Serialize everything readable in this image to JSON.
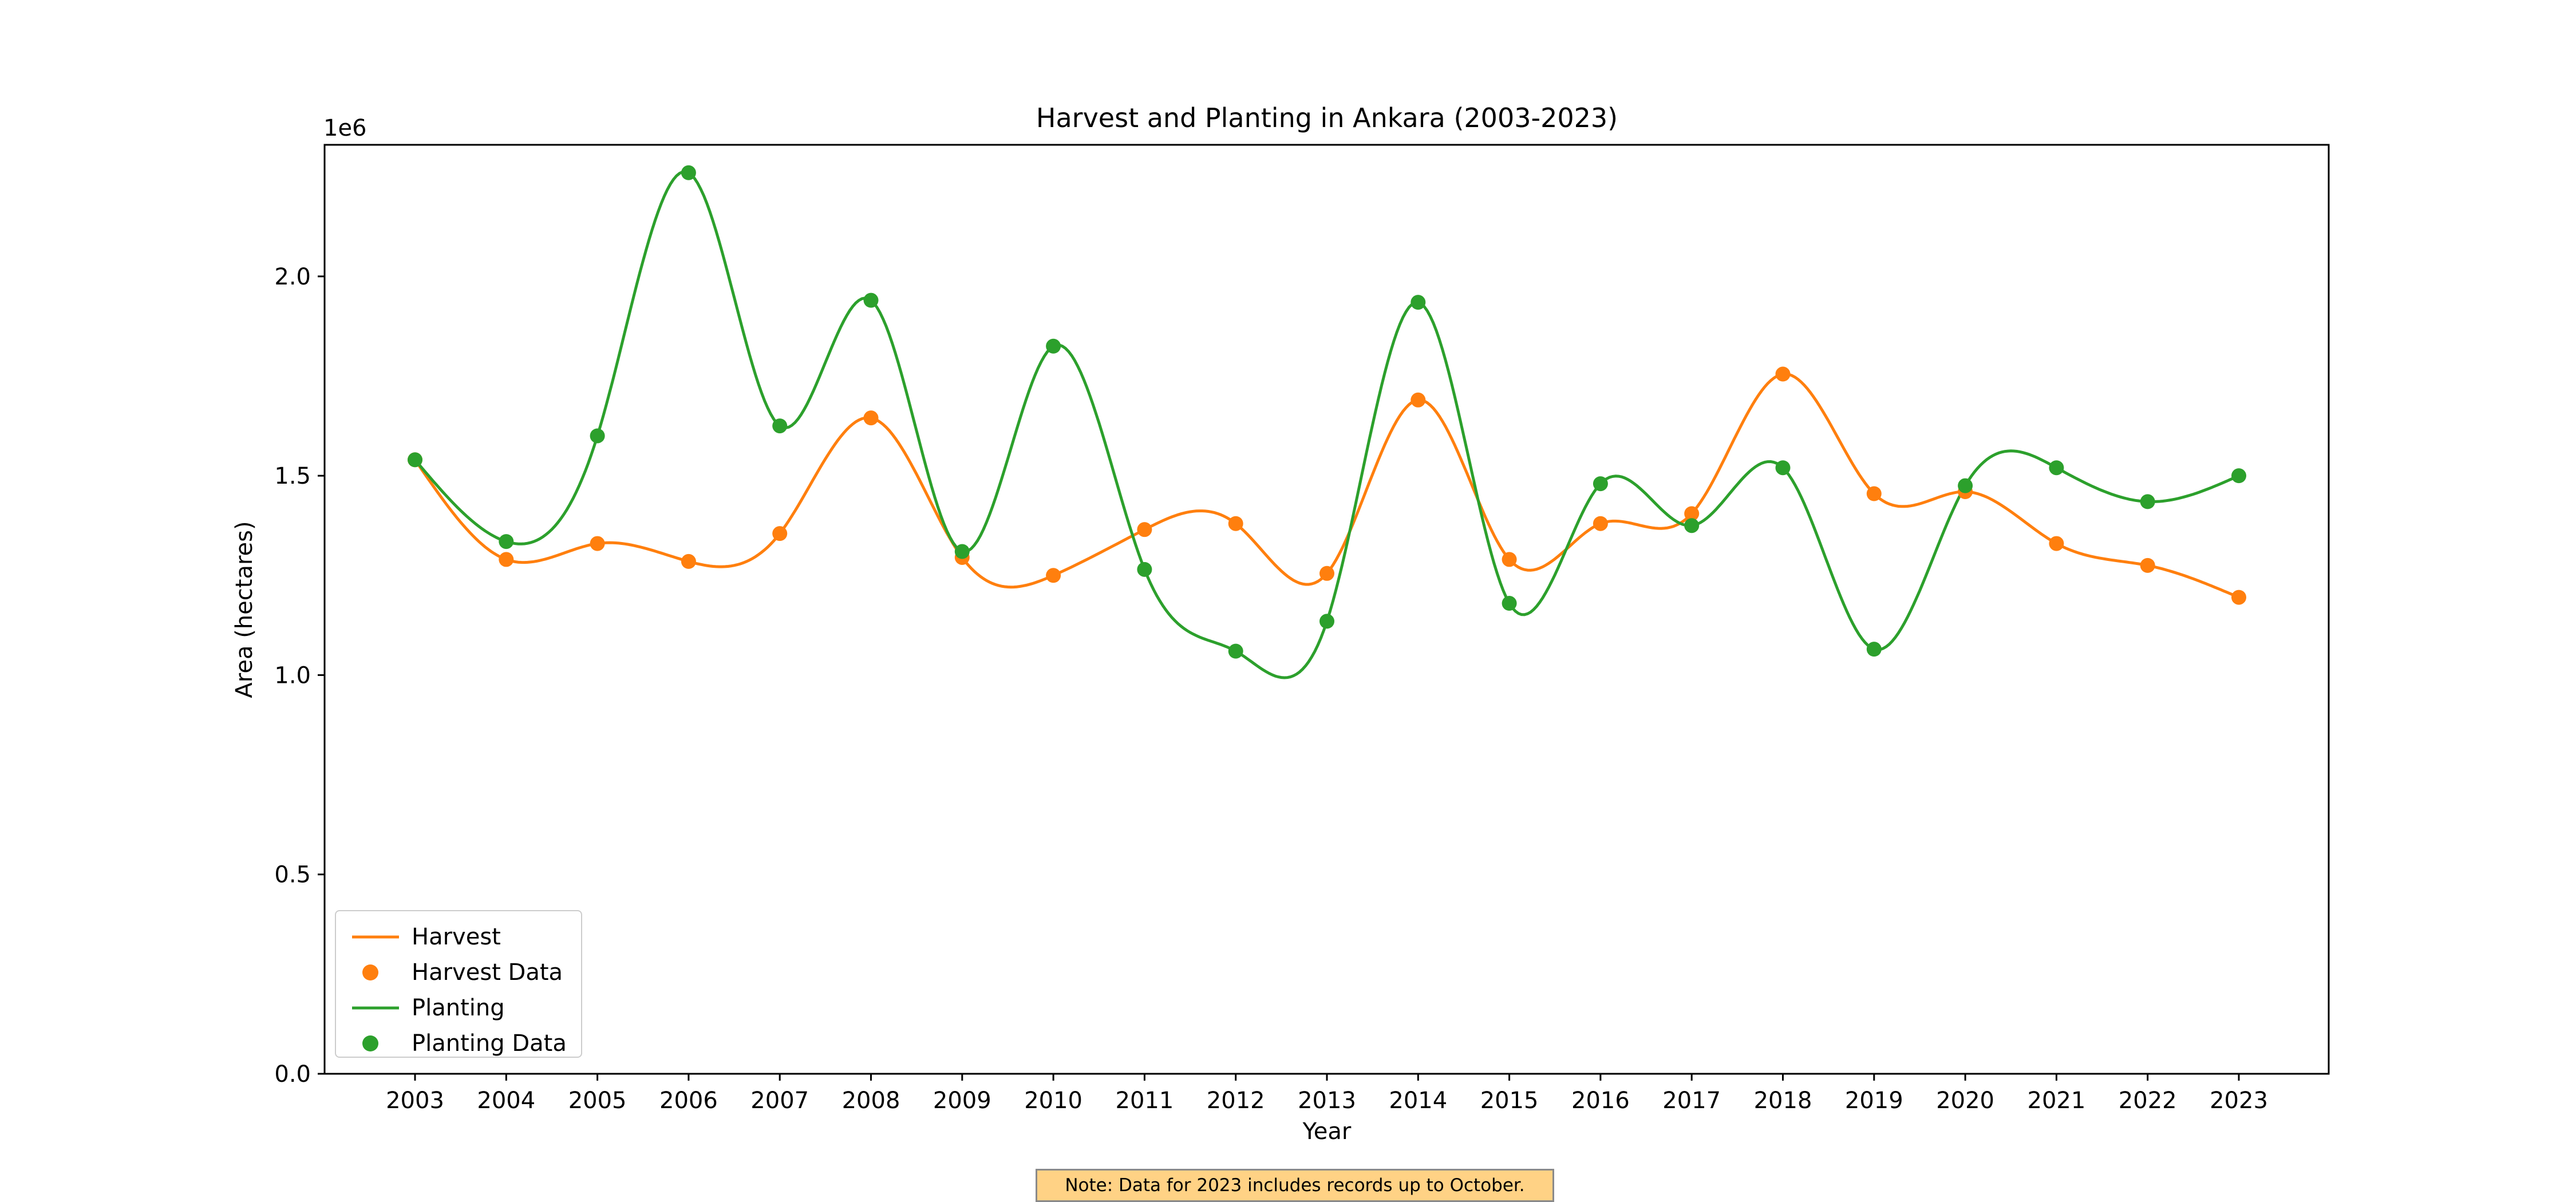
{
  "chart_data": {
    "type": "line",
    "title": "Harvest and Planting in Ankara (2003-2023)",
    "xlabel": "Year",
    "ylabel": "Area (hectares)",
    "y_offset_text": "1e6",
    "ylim": [
      0,
      2330000
    ],
    "yticks": [
      0,
      500000,
      1000000,
      1500000,
      2000000
    ],
    "ytick_labels": [
      "0.0",
      "0.5",
      "1.0",
      "1.5",
      "2.0"
    ],
    "x": [
      2003,
      2004,
      2005,
      2006,
      2007,
      2008,
      2009,
      2010,
      2011,
      2012,
      2013,
      2014,
      2015,
      2016,
      2017,
      2018,
      2019,
      2020,
      2021,
      2022,
      2023
    ],
    "x_labels": [
      "2003",
      "2004",
      "2005",
      "2006",
      "2007",
      "2008",
      "2009",
      "2010",
      "2011",
      "2012",
      "2013",
      "2014",
      "2015",
      "2016",
      "2017",
      "2018",
      "2019",
      "2020",
      "2021",
      "2022",
      "2023"
    ],
    "grid": false,
    "legend_position": "lower-left",
    "series": [
      {
        "name": "Harvest",
        "marker_label": "Harvest Data",
        "color": "#ff7f0e",
        "values": [
          1540000,
          1290000,
          1330000,
          1285000,
          1355000,
          1645000,
          1295000,
          1250000,
          1365000,
          1380000,
          1255000,
          1690000,
          1290000,
          1380000,
          1405000,
          1755000,
          1455000,
          1460000,
          1330000,
          1275000,
          1195000
        ]
      },
      {
        "name": "Planting",
        "marker_label": "Planting Data",
        "color": "#2ca02c",
        "values": [
          1540000,
          1335000,
          1600000,
          2260000,
          1625000,
          1940000,
          1310000,
          1825000,
          1265000,
          1060000,
          1135000,
          1935000,
          1180000,
          1480000,
          1375000,
          1520000,
          1065000,
          1475000,
          1520000,
          1435000,
          1500000
        ]
      }
    ],
    "note": "Note: Data for 2023 includes records up to October."
  }
}
